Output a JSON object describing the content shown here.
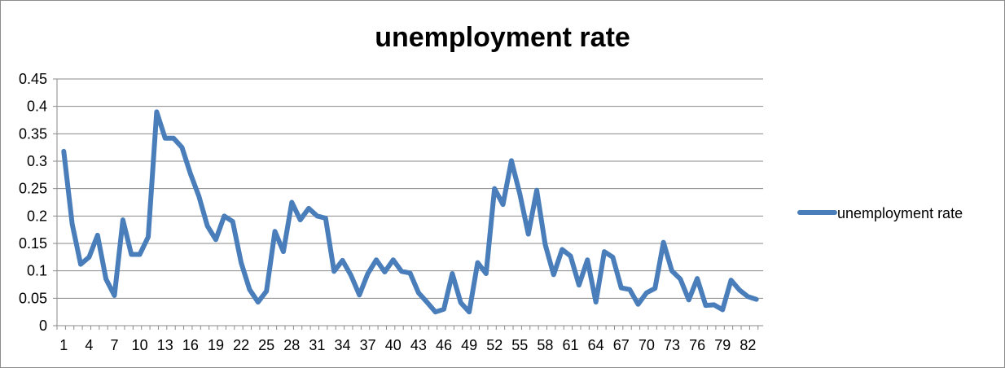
{
  "chart_data": {
    "type": "line",
    "title": "unemployment rate",
    "xlabel": "",
    "ylabel": "",
    "ylim": [
      0,
      0.45
    ],
    "y_ticks": [
      "0",
      "0.05",
      "0.1",
      "0.15",
      "0.2",
      "0.25",
      "0.3",
      "0.35",
      "0.4",
      "0.45"
    ],
    "x_tick_labels": [
      "1",
      "4",
      "7",
      "10",
      "13",
      "16",
      "19",
      "22",
      "25",
      "28",
      "31",
      "34",
      "37",
      "40",
      "43",
      "46",
      "49",
      "52",
      "55",
      "58",
      "61",
      "64",
      "67",
      "70",
      "73",
      "76",
      "79",
      "82"
    ],
    "x_tick_values": [
      1,
      4,
      7,
      10,
      13,
      16,
      19,
      22,
      25,
      28,
      31,
      34,
      37,
      40,
      43,
      46,
      49,
      52,
      55,
      58,
      61,
      64,
      67,
      70,
      73,
      76,
      79,
      82
    ],
    "x": [
      1,
      2,
      3,
      4,
      5,
      6,
      7,
      8,
      9,
      10,
      11,
      12,
      13,
      14,
      15,
      16,
      17,
      18,
      19,
      20,
      21,
      22,
      23,
      24,
      25,
      26,
      27,
      28,
      29,
      30,
      31,
      32,
      33,
      34,
      35,
      36,
      37,
      38,
      39,
      40,
      41,
      42,
      43,
      44,
      45,
      46,
      47,
      48,
      49,
      50,
      51,
      52,
      53,
      54,
      55,
      56,
      57,
      58,
      59,
      60,
      61,
      62,
      63,
      64,
      65,
      66,
      67,
      68,
      69,
      70,
      71,
      72,
      73,
      74,
      75,
      76,
      77,
      78,
      79,
      80,
      81,
      82,
      83
    ],
    "grid": true,
    "legend_position": "right",
    "series": [
      {
        "name": "unemployment rate",
        "color": "#4a7ebb",
        "values": [
          0.318,
          0.185,
          0.112,
          0.125,
          0.165,
          0.085,
          0.055,
          0.193,
          0.13,
          0.13,
          0.162,
          0.39,
          0.342,
          0.342,
          0.325,
          0.277,
          0.236,
          0.182,
          0.157,
          0.2,
          0.19,
          0.115,
          0.066,
          0.043,
          0.063,
          0.172,
          0.135,
          0.225,
          0.193,
          0.214,
          0.2,
          0.196,
          0.099,
          0.119,
          0.092,
          0.056,
          0.095,
          0.12,
          0.098,
          0.12,
          0.099,
          0.096,
          0.06,
          0.043,
          0.025,
          0.03,
          0.095,
          0.042,
          0.025,
          0.115,
          0.095,
          0.25,
          0.221,
          0.301,
          0.24,
          0.167,
          0.247,
          0.148,
          0.093,
          0.139,
          0.127,
          0.074,
          0.12,
          0.043,
          0.135,
          0.125,
          0.069,
          0.066,
          0.039,
          0.06,
          0.068,
          0.152,
          0.1,
          0.085,
          0.047,
          0.086,
          0.037,
          0.038,
          0.029,
          0.083,
          0.065,
          0.053,
          0.048
        ]
      }
    ]
  }
}
